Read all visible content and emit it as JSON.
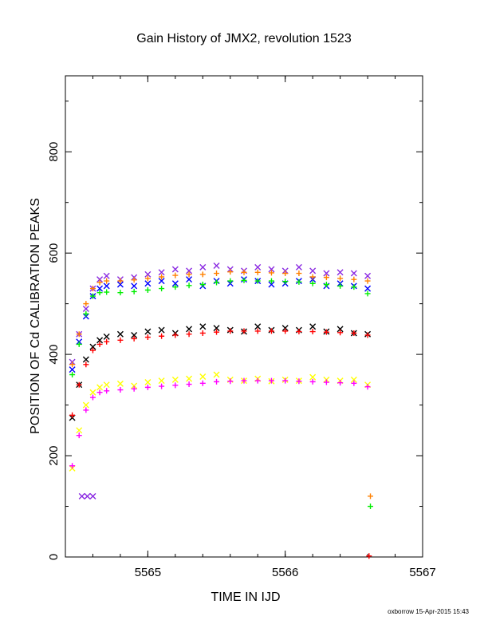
{
  "chart_data": {
    "type": "scatter",
    "title": "Gain History of JMX2, revolution 1523",
    "xlabel": "TIME IN IJD",
    "ylabel": "POSITION OF Cd CALIBRATION PEAKS",
    "footer": "oxborrow 15-Apr-2015 15:43",
    "xlim": [
      5564.4,
      5567.0
    ],
    "ylim": [
      0,
      950
    ],
    "x_ticks": [
      {
        "value": 5565,
        "label": "5565"
      },
      {
        "value": 5566,
        "label": "5566"
      },
      {
        "value": 5567,
        "label": "5567"
      }
    ],
    "y_ticks": [
      {
        "value": 0,
        "label": "0"
      },
      {
        "value": 200,
        "label": "200"
      },
      {
        "value": 400,
        "label": "400"
      },
      {
        "value": 600,
        "label": "600"
      },
      {
        "value": 800,
        "label": "800"
      }
    ],
    "grid": false,
    "series": [
      {
        "color": "#8b2be2",
        "marker": "x",
        "x": [
          5564.45,
          5564.5,
          5564.55,
          5564.6,
          5564.65,
          5564.7,
          5564.8,
          5564.9,
          5565.0,
          5565.1,
          5565.2,
          5565.3,
          5565.4,
          5565.5,
          5565.6,
          5565.7,
          5565.8,
          5565.9,
          5566.0,
          5566.1,
          5566.2,
          5566.3,
          5566.4,
          5566.5,
          5566.6,
          5564.52,
          5564.56,
          5564.6
        ],
        "y": [
          385,
          440,
          490,
          530,
          548,
          555,
          548,
          552,
          558,
          562,
          568,
          565,
          572,
          575,
          568,
          565,
          572,
          568,
          565,
          572,
          565,
          560,
          562,
          560,
          555,
          120,
          120,
          120
        ]
      },
      {
        "color": "#0000ff",
        "marker": "x",
        "x": [
          5564.45,
          5564.5,
          5564.55,
          5564.6,
          5564.65,
          5564.7,
          5564.8,
          5564.9,
          5565.0,
          5565.1,
          5565.2,
          5565.3,
          5565.4,
          5565.5,
          5565.6,
          5565.7,
          5565.8,
          5565.9,
          5566.0,
          5566.1,
          5566.2,
          5566.3,
          5566.4,
          5566.5,
          5566.6
        ],
        "y": [
          370,
          425,
          475,
          515,
          530,
          535,
          538,
          535,
          540,
          545,
          540,
          548,
          535,
          545,
          540,
          548,
          545,
          538,
          540,
          545,
          548,
          535,
          540,
          535,
          530
        ]
      },
      {
        "color": "#ff8000",
        "marker": "+",
        "x": [
          5564.45,
          5564.5,
          5564.55,
          5564.6,
          5564.65,
          5564.7,
          5564.8,
          5564.9,
          5565.0,
          5565.1,
          5565.2,
          5565.3,
          5565.4,
          5565.5,
          5565.6,
          5565.7,
          5565.8,
          5565.9,
          5566.0,
          5566.1,
          5566.2,
          5566.3,
          5566.4,
          5566.5,
          5566.6,
          5566.62
        ],
        "y": [
          380,
          440,
          500,
          530,
          542,
          545,
          545,
          547,
          550,
          553,
          556,
          558,
          558,
          560,
          563,
          562,
          562,
          561,
          560,
          560,
          553,
          552,
          550,
          548,
          545,
          120
        ]
      },
      {
        "color": "#00ee00",
        "marker": "+",
        "x": [
          5564.45,
          5564.5,
          5564.55,
          5564.6,
          5564.65,
          5564.7,
          5564.8,
          5564.9,
          5565.0,
          5565.1,
          5565.2,
          5565.3,
          5565.4,
          5565.5,
          5565.6,
          5565.7,
          5565.8,
          5565.9,
          5566.0,
          5566.1,
          5566.2,
          5566.3,
          5566.4,
          5566.5,
          5566.6,
          5566.62
        ],
        "y": [
          360,
          420,
          480,
          515,
          522,
          523,
          522,
          524,
          527,
          530,
          533,
          536,
          538,
          542,
          545,
          546,
          545,
          545,
          544,
          543,
          540,
          538,
          535,
          533,
          520,
          100
        ]
      },
      {
        "color": "#000000",
        "marker": "x",
        "x": [
          5564.45,
          5564.5,
          5564.55,
          5564.6,
          5564.65,
          5564.7,
          5564.8,
          5564.9,
          5565.0,
          5565.1,
          5565.2,
          5565.3,
          5565.4,
          5565.5,
          5565.6,
          5565.7,
          5565.8,
          5565.9,
          5566.0,
          5566.1,
          5566.2,
          5566.3,
          5566.4,
          5566.5,
          5566.6
        ],
        "y": [
          275,
          340,
          390,
          415,
          428,
          435,
          440,
          438,
          445,
          448,
          442,
          450,
          455,
          452,
          448,
          445,
          455,
          448,
          452,
          448,
          455,
          445,
          450,
          442,
          440
        ]
      },
      {
        "color": "#ff0000",
        "marker": "+",
        "x": [
          5564.45,
          5564.5,
          5564.55,
          5564.6,
          5564.65,
          5564.7,
          5564.8,
          5564.9,
          5565.0,
          5565.1,
          5565.2,
          5565.3,
          5565.4,
          5565.5,
          5565.6,
          5565.7,
          5565.8,
          5565.9,
          5566.0,
          5566.1,
          5566.2,
          5566.3,
          5566.4,
          5566.5,
          5566.6,
          5566.61
        ],
        "y": [
          280,
          340,
          380,
          408,
          420,
          425,
          428,
          431,
          434,
          436,
          438,
          440,
          442,
          444,
          446,
          446,
          446,
          446,
          446,
          445,
          445,
          444,
          443,
          442,
          438,
          2
        ]
      },
      {
        "color": "#ffff00",
        "marker": "x",
        "x": [
          5564.45,
          5564.5,
          5564.55,
          5564.6,
          5564.65,
          5564.7,
          5564.8,
          5564.9,
          5565.0,
          5565.1,
          5565.2,
          5565.3,
          5565.4,
          5565.5,
          5565.6,
          5565.7,
          5565.8,
          5565.9,
          5566.0,
          5566.1,
          5566.2,
          5566.3,
          5566.4,
          5566.5,
          5566.6
        ],
        "y": [
          175,
          250,
          300,
          325,
          335,
          340,
          342,
          338,
          345,
          348,
          350,
          352,
          356,
          360,
          350,
          348,
          352,
          347,
          350,
          348,
          355,
          350,
          348,
          350,
          340
        ]
      },
      {
        "color": "#ff00ff",
        "marker": "+",
        "x": [
          5564.45,
          5564.5,
          5564.55,
          5564.6,
          5564.65,
          5564.7,
          5564.8,
          5564.9,
          5565.0,
          5565.1,
          5565.2,
          5565.3,
          5565.4,
          5565.5,
          5565.6,
          5565.7,
          5565.8,
          5565.9,
          5566.0,
          5566.1,
          5566.2,
          5566.3,
          5566.4,
          5566.5,
          5566.6
        ],
        "y": [
          180,
          240,
          290,
          315,
          325,
          328,
          330,
          332,
          335,
          337,
          339,
          341,
          343,
          346,
          347,
          348,
          348,
          348,
          348,
          347,
          346,
          345,
          344,
          343,
          336
        ]
      }
    ]
  }
}
